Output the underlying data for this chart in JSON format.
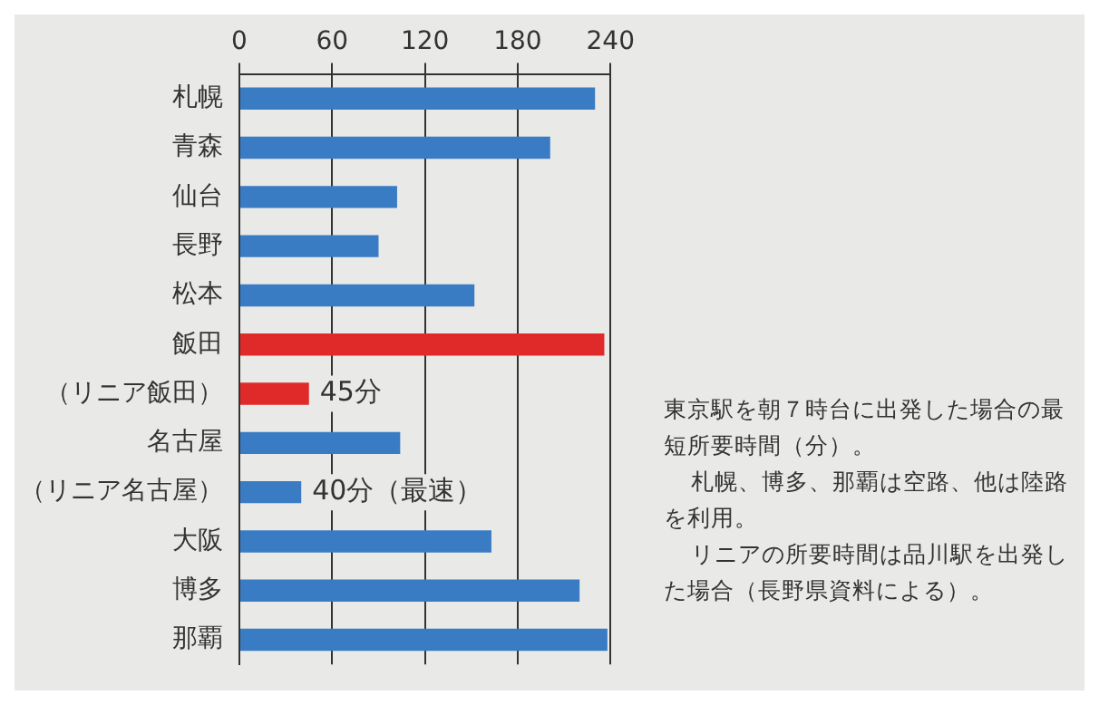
{
  "chart_data": {
    "type": "bar",
    "orientation": "horizontal",
    "categories": [
      "札幌",
      "青森",
      "仙台",
      "長野",
      "松本",
      "飯田",
      "（リニア飯田）",
      "名古屋",
      "（リニア名古屋）",
      "大阪",
      "博多",
      "那覇"
    ],
    "values": [
      230,
      201,
      102,
      90,
      152,
      236,
      45,
      104,
      40,
      163,
      220,
      238
    ],
    "colors": [
      "#3a7cc4",
      "#3a7cc4",
      "#3a7cc4",
      "#3a7cc4",
      "#3a7cc4",
      "#e02a2a",
      "#e02a2a",
      "#3a7cc4",
      "#3a7cc4",
      "#3a7cc4",
      "#3a7cc4",
      "#3a7cc4"
    ],
    "value_labels": [
      null,
      null,
      null,
      null,
      null,
      null,
      "45分",
      null,
      "40分（最速）",
      null,
      null,
      null
    ],
    "xlim": [
      0,
      240
    ],
    "xticks": [
      0,
      60,
      120,
      180,
      240
    ],
    "grid": "x",
    "legend": false,
    "annotations": [
      "東京駅を朝７時台に出発した場合の最短所要時間（分）。",
      "札幌、博多、那覇は空路、他は陸路を利用。",
      "リニアの所要時間は品川駅を出発した場合（長野県資料による）。"
    ]
  }
}
